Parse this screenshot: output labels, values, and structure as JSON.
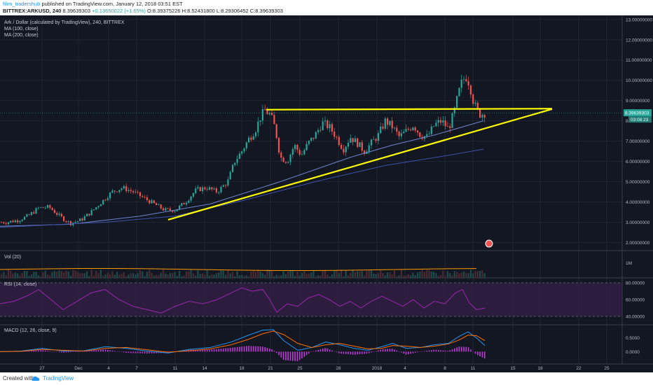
{
  "header": {
    "author": "filim_tradershub",
    "published": "published on TradingView.com, January 12, 2018 03:51 EST",
    "symbol_line": "BITTREX:ARKUSD, 240",
    "last": "8.39639303",
    "change": "+0.13650022 (+1.65%)",
    "ohlc": "O:8.39375226 H:8.52431800 L:8.29306452 C:8.39639303"
  },
  "footer": {
    "created_with": "Created with",
    "brand": "TradingView"
  },
  "colors": {
    "background": "#131722",
    "up": "#26a69a",
    "down": "#ef5350",
    "trendline": "#ffff00",
    "ma100": "#6f84cc",
    "ma200": "#3f52a8",
    "rsi": "#9c27b0",
    "volume_ma": "#ff9800",
    "macd": "#2196f3",
    "signal": "#ff6d00",
    "histogram": "#e040fb"
  },
  "chart_data": {
    "type": "candlestick",
    "title": "Ark / Dollar (calculated by TradingView), 240, BITTREX",
    "indicators": [
      "MA (100, close)",
      "MA (200, close)"
    ],
    "x_tick_labels": [
      "27",
      "Dec",
      "4",
      "7",
      "11",
      "14",
      "18",
      "21",
      "25",
      "28",
      "2018",
      "4",
      "8",
      "11",
      "15",
      "18",
      "22",
      "25"
    ],
    "y_tick_labels": [
      "2.00000000",
      "3.00000000",
      "4.00000000",
      "5.00000000",
      "6.00000000",
      "7.00000000",
      "8.00000000",
      "9.00000000",
      "10.00000000",
      "11.00000000",
      "12.00000000",
      "13.00000000"
    ],
    "ylim": [
      1.6,
      13.2
    ],
    "last_price_label": "8.39639303",
    "countdown_label": "03:08:23",
    "price_path": [
      [
        0,
        3.0
      ],
      [
        10,
        3.0
      ],
      [
        25,
        3.1
      ],
      [
        40,
        3.3
      ],
      [
        55,
        3.7
      ],
      [
        70,
        3.75
      ],
      [
        85,
        3.3
      ],
      [
        100,
        2.95
      ],
      [
        115,
        3.1
      ],
      [
        130,
        3.5
      ],
      [
        145,
        4.0
      ],
      [
        160,
        4.5
      ],
      [
        175,
        4.7
      ],
      [
        190,
        4.5
      ],
      [
        205,
        4.2
      ],
      [
        220,
        3.9
      ],
      [
        235,
        3.6
      ],
      [
        250,
        3.6
      ],
      [
        265,
        4.0
      ],
      [
        280,
        4.6
      ],
      [
        295,
        4.7
      ],
      [
        310,
        4.5
      ],
      [
        325,
        5.0
      ],
      [
        335,
        6.0
      ],
      [
        345,
        6.5
      ],
      [
        355,
        7.1
      ],
      [
        365,
        7.6
      ],
      [
        372,
        8.2
      ],
      [
        378,
        8.5
      ],
      [
        386,
        8.3
      ],
      [
        393,
        7.6
      ],
      [
        400,
        6.2
      ],
      [
        410,
        6.0
      ],
      [
        420,
        6.8
      ],
      [
        430,
        6.3
      ],
      [
        440,
        6.9
      ],
      [
        450,
        7.3
      ],
      [
        460,
        7.9
      ],
      [
        470,
        7.7
      ],
      [
        480,
        7.2
      ],
      [
        490,
        6.6
      ],
      [
        500,
        7.2
      ],
      [
        510,
        6.9
      ],
      [
        520,
        6.5
      ],
      [
        530,
        6.9
      ],
      [
        540,
        7.3
      ],
      [
        550,
        8.0
      ],
      [
        560,
        7.7
      ],
      [
        570,
        7.2
      ],
      [
        580,
        7.5
      ],
      [
        590,
        7.8
      ],
      [
        600,
        7.3
      ],
      [
        610,
        7.2
      ],
      [
        620,
        7.8
      ],
      [
        630,
        8.0
      ],
      [
        640,
        7.6
      ],
      [
        648,
        8.4
      ],
      [
        654,
        9.3
      ],
      [
        660,
        10.0
      ],
      [
        666,
        10.2
      ],
      [
        671,
        9.7
      ],
      [
        676,
        8.9
      ],
      [
        681,
        8.5
      ],
      [
        686,
        8.3
      ],
      [
        692,
        8.4
      ]
    ],
    "ma100": [
      [
        0,
        2.8
      ],
      [
        100,
        2.9
      ],
      [
        200,
        3.3
      ],
      [
        300,
        3.9
      ],
      [
        400,
        5.0
      ],
      [
        500,
        6.2
      ],
      [
        560,
        6.8
      ],
      [
        620,
        7.3
      ],
      [
        690,
        8.0
      ]
    ],
    "ma200": [
      [
        0,
        2.75
      ],
      [
        150,
        3.0
      ],
      [
        250,
        3.3
      ],
      [
        350,
        4.1
      ],
      [
        450,
        5.0
      ],
      [
        550,
        5.8
      ],
      [
        640,
        6.3
      ],
      [
        690,
        6.6
      ]
    ],
    "trendlines": [
      {
        "from": [
          240,
          3.12
        ],
        "to": [
          788,
          8.58
        ]
      },
      {
        "from": [
          380,
          8.55
        ],
        "to": [
          788,
          8.6
        ]
      }
    ],
    "volume": {
      "title": "Vol (20)",
      "tick_labels": [
        "1M"
      ]
    },
    "rsi": {
      "title": "RSI (14, close)",
      "tick_labels": [
        "80.00000",
        "60.00000",
        "40.00000"
      ],
      "ylim": [
        30,
        85
      ],
      "values": [
        [
          0,
          55
        ],
        [
          20,
          58
        ],
        [
          40,
          65
        ],
        [
          55,
          72
        ],
        [
          70,
          62
        ],
        [
          90,
          48
        ],
        [
          110,
          58
        ],
        [
          130,
          68
        ],
        [
          150,
          72
        ],
        [
          170,
          60
        ],
        [
          190,
          52
        ],
        [
          210,
          48
        ],
        [
          230,
          44
        ],
        [
          250,
          52
        ],
        [
          270,
          58
        ],
        [
          290,
          55
        ],
        [
          310,
          60
        ],
        [
          330,
          68
        ],
        [
          345,
          74
        ],
        [
          360,
          70
        ],
        [
          375,
          72
        ],
        [
          385,
          60
        ],
        [
          395,
          45
        ],
        [
          410,
          55
        ],
        [
          425,
          52
        ],
        [
          440,
          62
        ],
        [
          455,
          66
        ],
        [
          470,
          60
        ],
        [
          485,
          52
        ],
        [
          500,
          58
        ],
        [
          515,
          50
        ],
        [
          530,
          58
        ],
        [
          545,
          64
        ],
        [
          560,
          58
        ],
        [
          575,
          52
        ],
        [
          590,
          60
        ],
        [
          605,
          50
        ],
        [
          620,
          58
        ],
        [
          635,
          55
        ],
        [
          650,
          68
        ],
        [
          660,
          72
        ],
        [
          670,
          56
        ],
        [
          680,
          48
        ],
        [
          692,
          50
        ]
      ]
    },
    "macd": {
      "title": "MACD (12, 26, close, 9)",
      "tick_labels": [
        "0.5000",
        "0.0000"
      ],
      "ylim": [
        -0.45,
        0.95
      ],
      "macd": [
        [
          0,
          0.0
        ],
        [
          30,
          0.02
        ],
        [
          60,
          0.12
        ],
        [
          90,
          0.02
        ],
        [
          120,
          0.03
        ],
        [
          150,
          0.18
        ],
        [
          180,
          0.12
        ],
        [
          210,
          0.02
        ],
        [
          240,
          -0.05
        ],
        [
          270,
          0.08
        ],
        [
          300,
          0.15
        ],
        [
          330,
          0.35
        ],
        [
          355,
          0.6
        ],
        [
          375,
          0.78
        ],
        [
          390,
          0.8
        ],
        [
          405,
          0.4
        ],
        [
          425,
          0.05
        ],
        [
          445,
          0.15
        ],
        [
          465,
          0.35
        ],
        [
          485,
          0.25
        ],
        [
          505,
          0.12
        ],
        [
          525,
          0.05
        ],
        [
          545,
          0.18
        ],
        [
          560,
          0.3
        ],
        [
          580,
          0.12
        ],
        [
          600,
          0.15
        ],
        [
          620,
          0.25
        ],
        [
          640,
          0.3
        ],
        [
          655,
          0.55
        ],
        [
          668,
          0.72
        ],
        [
          680,
          0.5
        ],
        [
          692,
          0.22
        ]
      ],
      "signal": [
        [
          0,
          0.0
        ],
        [
          30,
          0.01
        ],
        [
          60,
          0.08
        ],
        [
          90,
          0.05
        ],
        [
          120,
          0.02
        ],
        [
          150,
          0.12
        ],
        [
          180,
          0.15
        ],
        [
          210,
          0.07
        ],
        [
          240,
          -0.02
        ],
        [
          270,
          0.03
        ],
        [
          300,
          0.1
        ],
        [
          330,
          0.25
        ],
        [
          355,
          0.45
        ],
        [
          375,
          0.65
        ],
        [
          390,
          0.75
        ],
        [
          405,
          0.62
        ],
        [
          425,
          0.3
        ],
        [
          445,
          0.15
        ],
        [
          465,
          0.25
        ],
        [
          485,
          0.3
        ],
        [
          505,
          0.2
        ],
        [
          525,
          0.1
        ],
        [
          545,
          0.12
        ],
        [
          560,
          0.22
        ],
        [
          580,
          0.2
        ],
        [
          600,
          0.15
        ],
        [
          620,
          0.2
        ],
        [
          640,
          0.28
        ],
        [
          655,
          0.42
        ],
        [
          668,
          0.6
        ],
        [
          680,
          0.58
        ],
        [
          692,
          0.4
        ]
      ]
    }
  }
}
